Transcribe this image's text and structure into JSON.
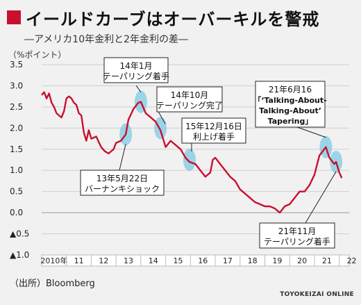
{
  "header": {
    "title": "イールドカーブはオーバーキルを警戒",
    "subtitle": "―アメリカ10年金利と2年金利の差―",
    "unit": "（%ポイント）"
  },
  "footer": {
    "source": "（出所）Bloomberg",
    "credit": "TOYOKEIZAI ONLINE"
  },
  "colors": {
    "accent": "#c8102e",
    "line": "#c8102e",
    "highlight": "#7ec9e3"
  },
  "chart_data": {
    "type": "line",
    "xlim": [
      2010.0,
      2022.4
    ],
    "ylim": [
      -1.0,
      3.5
    ],
    "yticks": [
      3.5,
      3.0,
      2.5,
      2.0,
      1.5,
      1.0,
      0.5,
      0.0,
      -0.5,
      -1.0
    ],
    "ytick_labels": [
      "3.5",
      "3.0",
      "2.5",
      "2.0",
      "1.5",
      "1.0",
      "0.5",
      "0.0",
      "▲0.5",
      "▲1.0"
    ],
    "xtick_labels": [
      "2010年",
      "11",
      "12",
      "13",
      "14",
      "15",
      "16",
      "17",
      "18",
      "19",
      "20",
      "21",
      "22"
    ],
    "grid": "horizontal",
    "series": [
      {
        "x": [
          2010.0,
          2010.1,
          2010.2,
          2010.3,
          2010.4,
          2010.5,
          2010.6,
          2010.7,
          2010.8,
          2010.9,
          2011.0,
          2011.1,
          2011.2,
          2011.3,
          2011.4,
          2011.5,
          2011.6,
          2011.7,
          2011.8,
          2011.9,
          2012.0,
          2012.2,
          2012.4,
          2012.55,
          2012.7,
          2012.9,
          2013.0,
          2013.2,
          2013.39,
          2013.5,
          2013.7,
          2013.9,
          2014.0,
          2014.2,
          2014.4,
          2014.6,
          2014.79,
          2015.0,
          2015.2,
          2015.4,
          2015.6,
          2015.8,
          2015.96,
          2016.2,
          2016.4,
          2016.6,
          2016.8,
          2016.9,
          2017.0,
          2017.2,
          2017.4,
          2017.6,
          2017.8,
          2018.0,
          2018.2,
          2018.4,
          2018.6,
          2018.8,
          2019.0,
          2019.2,
          2019.4,
          2019.6,
          2019.8,
          2020.0,
          2020.2,
          2020.4,
          2020.6,
          2020.8,
          2021.0,
          2021.2,
          2021.46,
          2021.6,
          2021.8,
          2021.87,
          2022.0,
          2022.1
        ],
        "y": [
          2.78,
          2.85,
          2.7,
          2.82,
          2.6,
          2.5,
          2.35,
          2.3,
          2.25,
          2.4,
          2.7,
          2.75,
          2.7,
          2.6,
          2.55,
          2.35,
          2.3,
          1.9,
          1.7,
          1.95,
          1.75,
          1.8,
          1.55,
          1.45,
          1.4,
          1.5,
          1.65,
          1.7,
          1.85,
          2.2,
          2.45,
          2.6,
          2.62,
          2.35,
          2.25,
          2.15,
          1.95,
          1.55,
          1.7,
          1.6,
          1.5,
          1.3,
          1.2,
          1.15,
          1.0,
          0.85,
          0.95,
          1.25,
          1.3,
          1.15,
          1.0,
          0.85,
          0.75,
          0.55,
          0.45,
          0.35,
          0.25,
          0.2,
          0.15,
          0.15,
          0.1,
          0.0,
          0.15,
          0.2,
          0.35,
          0.5,
          0.5,
          0.65,
          0.9,
          1.35,
          1.55,
          1.3,
          1.15,
          1.2,
          0.95,
          0.82
        ]
      }
    ],
    "annotations": [
      {
        "label": [
          "14年1月",
          "テーパリング着手"
        ],
        "x": 2014.0,
        "y": 2.62
      },
      {
        "label": [
          "14年10月",
          "テーパリング完了"
        ],
        "x": 2014.79,
        "y": 2.0
      },
      {
        "label": [
          "15年12月16日",
          "利上げ着手"
        ],
        "x": 2015.96,
        "y": 1.25
      },
      {
        "label": [
          "13年5月22日",
          "バーナンキショック"
        ],
        "x": 2013.39,
        "y": 1.85
      },
      {
        "label": [
          "21年6月16",
          "「‘Talking-About-",
          "Talking-About’",
          "Tapering」"
        ],
        "x": 2021.46,
        "y": 1.55
      },
      {
        "label": [
          "21年11月",
          "テーパリング着手"
        ],
        "x": 2021.87,
        "y": 1.2
      }
    ]
  }
}
